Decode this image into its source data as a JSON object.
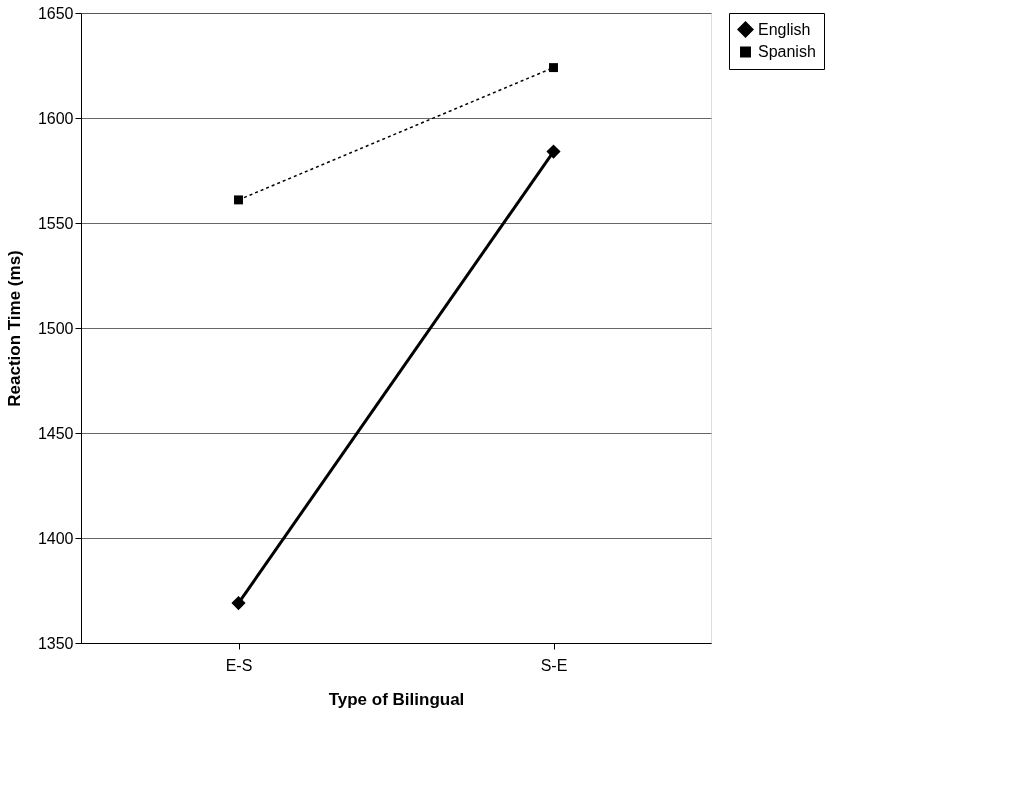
{
  "chart_data": {
    "type": "line",
    "xlabel": "Type of Bilingual",
    "ylabel": "Reaction Time (ms)",
    "categories": [
      "E-S",
      "S-E"
    ],
    "series": [
      {
        "name": "English",
        "color": "#000000",
        "values": [
          1369,
          1584
        ],
        "marker": "diamond",
        "line_style": "solid"
      },
      {
        "name": "Spanish",
        "color": "#000000",
        "values": [
          1561,
          1624
        ],
        "marker": "square",
        "line_style": "dotted"
      }
    ],
    "ylim": [
      1350,
      1650
    ],
    "yticks": [
      1350,
      1400,
      1450,
      1500,
      1550,
      1600,
      1650
    ],
    "grid": "y",
    "legend": "right"
  }
}
